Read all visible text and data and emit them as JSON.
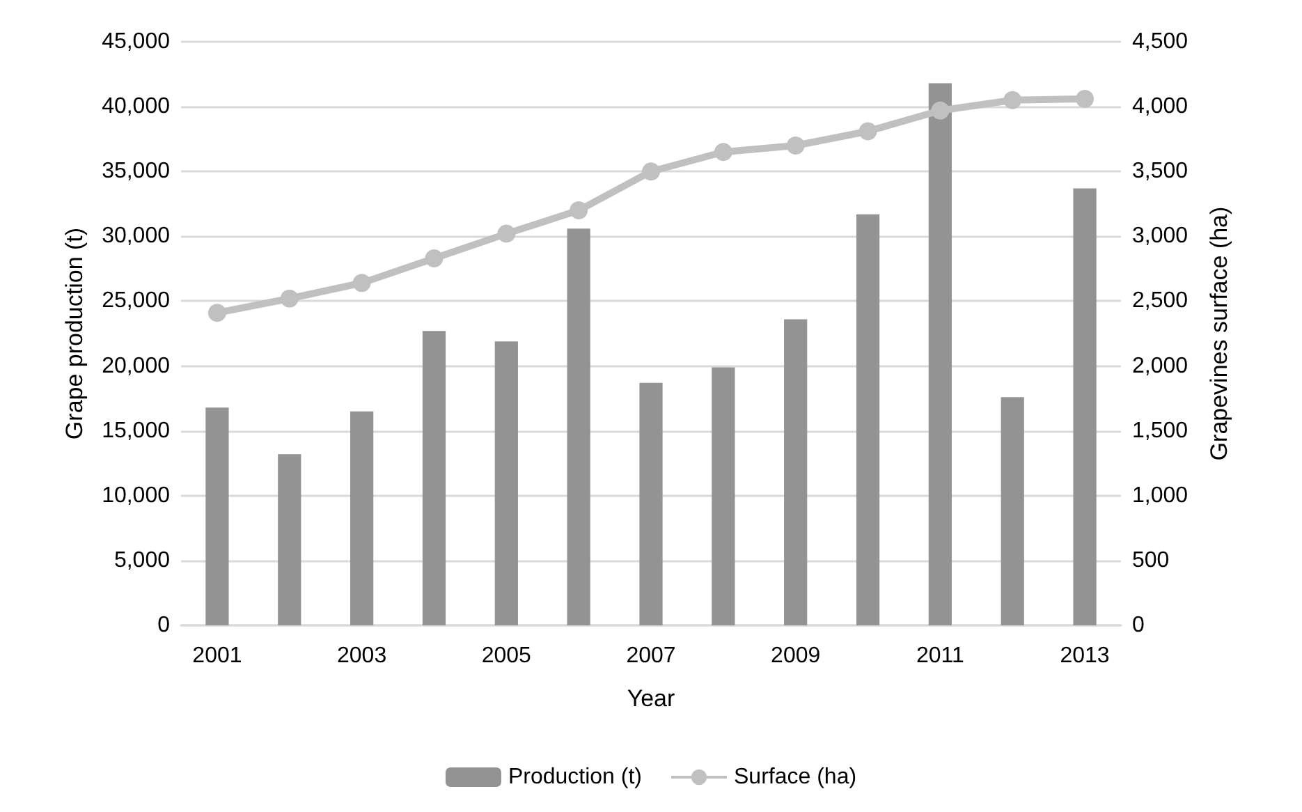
{
  "chart_data": {
    "type": "bar",
    "xlabel": "Year",
    "ylabel": "Grape production (t)",
    "y2label": "Grapevines surface (ha)",
    "categories": [
      "2001",
      null,
      "2003",
      null,
      "2005",
      null,
      "2007",
      null,
      "2009",
      null,
      "2011",
      null,
      "2013"
    ],
    "series": [
      {
        "name": "Production (t)",
        "color": "#939393",
        "values": [
          16800,
          13200,
          16500,
          22700,
          21900,
          30600,
          18700,
          19900,
          23600,
          31700,
          41800,
          17600,
          33700
        ]
      },
      {
        "name": "Surface (ha)",
        "type": "line",
        "axis": "y2",
        "color": "#c0c0c0",
        "marker": "circle",
        "values": [
          2410,
          2520,
          2640,
          2830,
          3020,
          3200,
          3500,
          3650,
          3700,
          3810,
          3970,
          4050,
          4060
        ]
      }
    ],
    "ylim": [
      0,
      45000
    ],
    "yticks": [
      {
        "value": 0,
        "label": "0"
      },
      {
        "value": 5000,
        "label": "5,000"
      },
      {
        "value": 10000,
        "label": "10,000"
      },
      {
        "value": 15000,
        "label": "15,000"
      },
      {
        "value": 20000,
        "label": "20,000"
      },
      {
        "value": 25000,
        "label": "25,000"
      },
      {
        "value": 30000,
        "label": "30,000"
      },
      {
        "value": 35000,
        "label": "35,000"
      },
      {
        "value": 40000,
        "label": "40,000"
      },
      {
        "value": 45000,
        "label": "45,000"
      }
    ],
    "y2lim": [
      0,
      4500
    ],
    "y2ticks": [
      {
        "value": 0,
        "label": "0"
      },
      {
        "value": 500,
        "label": "500"
      },
      {
        "value": 1000,
        "label": "1,000"
      },
      {
        "value": 1500,
        "label": "1,500"
      },
      {
        "value": 2000,
        "label": "2,000"
      },
      {
        "value": 2500,
        "label": "2,500"
      },
      {
        "value": 3000,
        "label": "3,000"
      },
      {
        "value": 3500,
        "label": "3,500"
      },
      {
        "value": 4000,
        "label": "4,000"
      },
      {
        "value": 4500,
        "label": "4,500"
      }
    ],
    "grid": "y",
    "legend": "bottom"
  }
}
